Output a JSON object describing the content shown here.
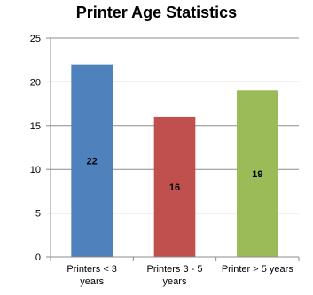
{
  "chart_data": {
    "type": "bar",
    "title": "Printer Age Statistics",
    "xlabel": "",
    "ylabel": "",
    "categories": [
      [
        "Printers < 3",
        "years"
      ],
      [
        "Printers 3 - 5",
        "years"
      ],
      [
        "Printer > 5 years"
      ]
    ],
    "values": [
      22,
      16,
      19
    ],
    "data_labels": [
      "22",
      "16",
      "19"
    ],
    "bar_colors": [
      "#4f81bd",
      "#c0504d",
      "#9bbb59"
    ],
    "ylim": [
      0,
      25
    ],
    "yticks": [
      "0",
      "5",
      "10",
      "15",
      "20",
      "25"
    ],
    "grid": true,
    "legend": "none"
  }
}
